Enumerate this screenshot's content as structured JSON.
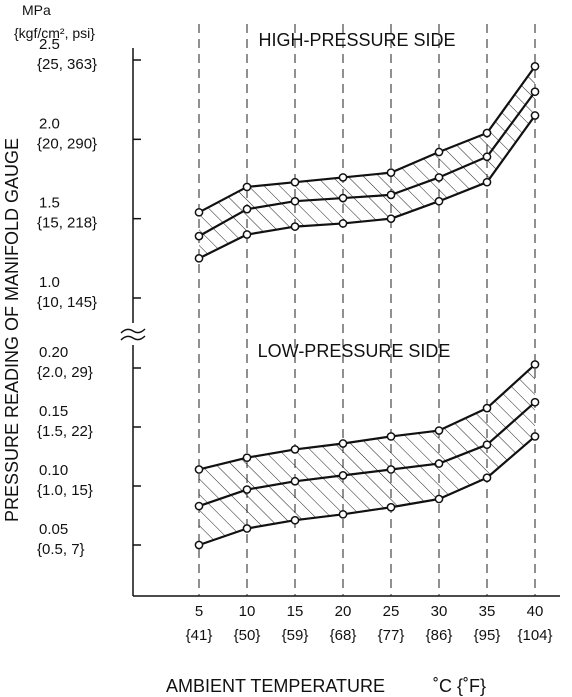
{
  "chart_data": {
    "type": "line",
    "ylabel": "PRESSURE READING OF MANIFOLD GAUGE",
    "xlabel": "AMBIENT TEMPERATURE",
    "xlabel_unit": "˚C {˚F}",
    "ylabel_unit_line1": "MPa",
    "ylabel_unit_line2": "{kgf/cm², psi}",
    "x": [
      5,
      10,
      15,
      20,
      25,
      30,
      35,
      40
    ],
    "x_ticks": [
      {
        "c": "5",
        "f": "{41}"
      },
      {
        "c": "10",
        "f": "{50}"
      },
      {
        "c": "15",
        "f": "{59}"
      },
      {
        "c": "20",
        "f": "{68}"
      },
      {
        "c": "25",
        "f": "{77}"
      },
      {
        "c": "30",
        "f": "{86}"
      },
      {
        "c": "35",
        "f": "{95}"
      },
      {
        "c": "40",
        "f": "{104}"
      }
    ],
    "axis_break": true,
    "gridlines": "vertical dashed at each temperature",
    "panels": [
      {
        "title": "HIGH-PRESSURE SIDE",
        "unit": "MPa",
        "y_ticks": [
          {
            "value": 2.5,
            "label": "2.5",
            "sub": "{25, 363}"
          },
          {
            "value": 2.0,
            "label": "2.0",
            "sub": "{20, 290}"
          },
          {
            "value": 1.5,
            "label": "1.5",
            "sub": "{15, 218}"
          },
          {
            "value": 1.0,
            "label": "1.0",
            "sub": "{10, 145}"
          }
        ],
        "series": [
          {
            "values": [
              1.54,
              1.7,
              1.73,
              1.76,
              1.79,
              1.92,
              2.04,
              2.46
            ]
          },
          {
            "values": [
              1.39,
              1.56,
              1.61,
              1.63,
              1.65,
              1.76,
              1.89,
              2.3
            ]
          },
          {
            "values": [
              1.25,
              1.4,
              1.45,
              1.47,
              1.5,
              1.61,
              1.73,
              2.15
            ]
          }
        ],
        "hatched_band": true
      },
      {
        "title": "LOW-PRESSURE SIDE",
        "unit": "MPa",
        "y_ticks": [
          {
            "value": 0.2,
            "label": "0.20",
            "sub": "{2.0, 29}"
          },
          {
            "value": 0.15,
            "label": "0.15",
            "sub": "{1.5, 22}"
          },
          {
            "value": 0.1,
            "label": "0.10",
            "sub": "{1.0, 15}"
          },
          {
            "value": 0.05,
            "label": "0.05",
            "sub": "{0.5, 7}"
          }
        ],
        "series": [
          {
            "values": [
              0.114,
              0.124,
              0.131,
              0.136,
              0.142,
              0.147,
              0.166,
              0.203
            ]
          },
          {
            "values": [
              0.083,
              0.097,
              0.104,
              0.109,
              0.114,
              0.119,
              0.135,
              0.171
            ]
          },
          {
            "values": [
              0.05,
              0.064,
              0.071,
              0.076,
              0.082,
              0.089,
              0.107,
              0.142
            ]
          }
        ],
        "hatched_band": true
      }
    ]
  }
}
